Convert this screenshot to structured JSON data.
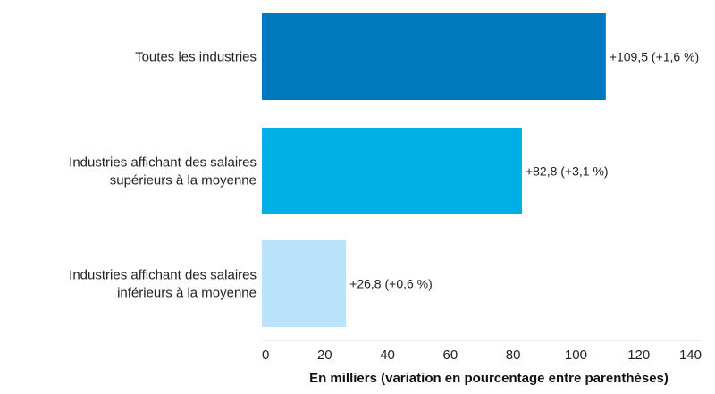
{
  "chart_data": {
    "type": "bar",
    "orientation": "horizontal",
    "categories": [
      [
        "Toutes les industries"
      ],
      [
        "Industries affichant des salaires",
        "supérieurs à la moyenne"
      ],
      [
        "Industries affichant des salaires",
        "inférieurs à la moyenne"
      ]
    ],
    "values": [
      109.5,
      82.8,
      26.8
    ],
    "data_labels": [
      "+109,5 (+1,6 %)",
      "+82,8 (+3,1 %)",
      "+26,8 (+0,6 %)"
    ],
    "colors": [
      "#0278be",
      "#00b0e4",
      "#b9e3fb"
    ],
    "xlabel": "En milliers (variation en pourcentage entre parenthèses)",
    "xlim": [
      0,
      140
    ],
    "xticks": [
      0,
      20,
      40,
      60,
      80,
      100,
      120,
      140
    ],
    "xtick_labels": [
      "0",
      "20",
      "40",
      "60",
      "80",
      "100",
      "120",
      "140"
    ],
    "grid": false,
    "legend": "none",
    "axis_line_color": "#dddddd"
  }
}
